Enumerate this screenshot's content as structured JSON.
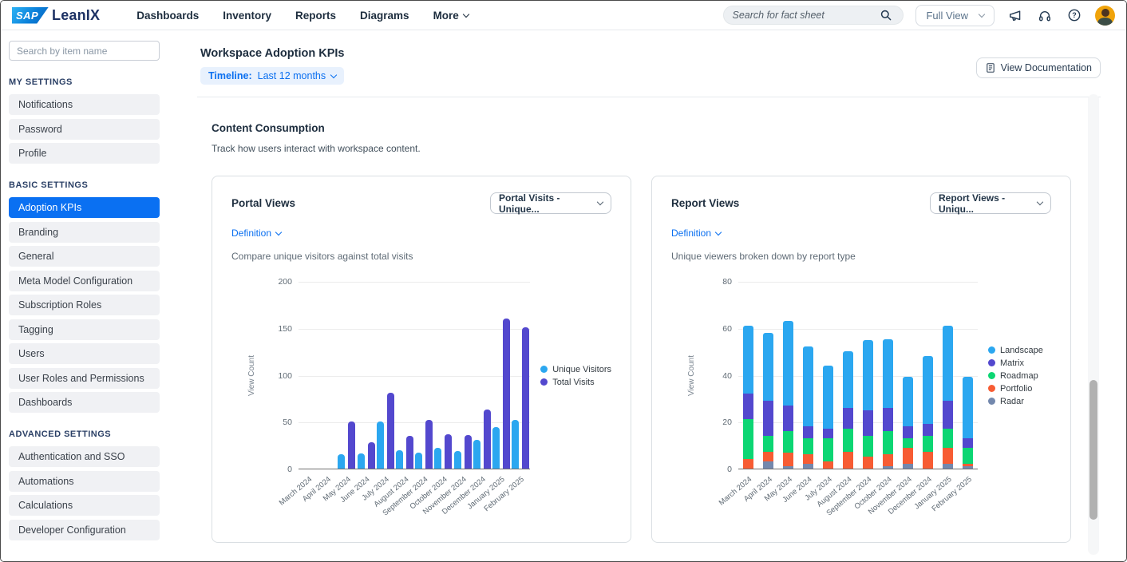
{
  "colors": {
    "accent": "#0070F2",
    "selected_item_bg": "#0A70F2"
  },
  "topnav": {
    "logo_sap": "SAP",
    "logo_leanix": "LeanIX",
    "items": [
      "Dashboards",
      "Inventory",
      "Reports",
      "Diagrams"
    ],
    "more_label": "More",
    "search_placeholder": "Search for fact sheet",
    "view_mode": "Full View",
    "icons": [
      "search-icon",
      "megaphone-icon",
      "headset-icon",
      "help-icon",
      "user-avatar"
    ]
  },
  "sidebar": {
    "search_placeholder": "Search by item name",
    "sections": [
      {
        "title": "MY SETTINGS",
        "items": [
          {
            "label": "Notifications"
          },
          {
            "label": "Password"
          },
          {
            "label": "Profile"
          }
        ]
      },
      {
        "title": "BASIC SETTINGS",
        "items": [
          {
            "label": "Adoption KPIs",
            "selected": true
          },
          {
            "label": "Branding"
          },
          {
            "label": "General"
          },
          {
            "label": "Meta Model Configuration"
          },
          {
            "label": "Subscription Roles"
          },
          {
            "label": "Tagging"
          },
          {
            "label": "Users"
          },
          {
            "label": "User Roles and Permissions"
          },
          {
            "label": "Dashboards"
          }
        ]
      },
      {
        "title": "ADVANCED SETTINGS",
        "items": [
          {
            "label": "Authentication and SSO"
          },
          {
            "label": "Automations"
          },
          {
            "label": "Calculations"
          },
          {
            "label": "Developer Configuration"
          }
        ]
      }
    ]
  },
  "main": {
    "title": "Workspace Adoption KPIs",
    "timeline_label": "Timeline:",
    "timeline_value": "Last 12 months",
    "view_documentation_label": "View Documentation",
    "section_title": "Content Consumption",
    "section_subtitle": "Track how users interact with workspace content."
  },
  "chart_data": [
    {
      "type": "bar",
      "title": "Portal Views",
      "dropdown_value": "Portal Visits - Unique...",
      "definition_label": "Definition",
      "description": "Compare unique visitors against total visits",
      "ylabel": "View Count",
      "ylim": [
        0,
        200
      ],
      "yticks": [
        0,
        50,
        100,
        150,
        200
      ],
      "grid": true,
      "legend_position": "right",
      "categories": [
        "March 2024",
        "April 2024",
        "May 2024",
        "June 2024",
        "July 2024",
        "August 2024",
        "September 2024",
        "October 2024",
        "November 2024",
        "December 2024",
        "January 2025",
        "February 2025"
      ],
      "series": [
        {
          "name": "Unique Visitors",
          "color": "#2BA7F0",
          "values": [
            0,
            0,
            15,
            16,
            50,
            20,
            17,
            22,
            19,
            31,
            44,
            52
          ]
        },
        {
          "name": "Total Visits",
          "color": "#5348CE",
          "values": [
            0,
            0,
            50,
            28,
            81,
            35,
            52,
            37,
            36,
            63,
            160,
            151
          ]
        }
      ]
    },
    {
      "type": "stacked-bar",
      "title": "Report Views",
      "dropdown_value": "Report Views - Uniqu...",
      "definition_label": "Definition",
      "description": "Unique viewers broken down by report type",
      "ylabel": "View Count",
      "ylim": [
        0,
        80
      ],
      "yticks": [
        0,
        20,
        40,
        60,
        80
      ],
      "grid": true,
      "legend_position": "right",
      "stack_order_bottom_to_top": [
        "Radar",
        "Portfolio",
        "Roadmap",
        "Matrix",
        "Landscape"
      ],
      "categories": [
        "March 2024",
        "April 2024",
        "May 2024",
        "June 2024",
        "July 2024",
        "August 2024",
        "September 2024",
        "October 2024",
        "November 2024",
        "December 2024",
        "January 2025",
        "February 2025"
      ],
      "series": [
        {
          "name": "Landscape",
          "color": "#2BA7F0",
          "values": [
            29,
            29,
            36,
            34,
            27,
            24,
            30,
            29,
            21,
            29,
            32,
            26
          ]
        },
        {
          "name": "Matrix",
          "color": "#5348CE",
          "values": [
            11,
            15,
            11,
            5,
            4,
            9,
            11,
            10,
            5,
            5,
            12,
            4
          ]
        },
        {
          "name": "Roadmap",
          "color": "#0CD673",
          "values": [
            17,
            7,
            9,
            7,
            10,
            10,
            9,
            10,
            4,
            7,
            8,
            7
          ]
        },
        {
          "name": "Portfolio",
          "color": "#F75C33",
          "values": [
            4,
            4,
            6,
            4,
            3,
            7,
            5,
            5,
            7,
            7,
            7,
            1
          ]
        },
        {
          "name": "Radar",
          "color": "#7388AD",
          "values": [
            0,
            3,
            1,
            2,
            0,
            0,
            0,
            1,
            2,
            0,
            2,
            1
          ]
        }
      ]
    }
  ]
}
